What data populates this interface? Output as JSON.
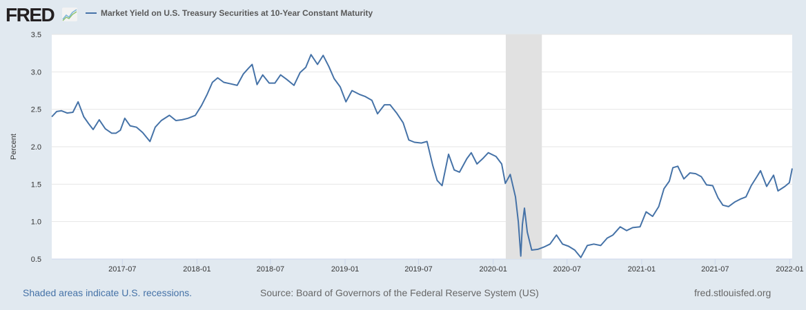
{
  "header": {
    "logo": "FRED",
    "legend_label": "Market Yield on U.S. Treasury Securities at 10-Year Constant Maturity"
  },
  "footer": {
    "note": "Shaded areas indicate U.S. recessions.",
    "source": "Source: Board of Governors of the Federal Reserve System (US)",
    "site": "fred.stlouisfed.org"
  },
  "colors": {
    "series": "#4572a7",
    "recession": "#e1e1e1",
    "background": "#e1e9f0"
  },
  "chart_data": {
    "type": "line",
    "title": "Market Yield on U.S. Treasury Securities at 10-Year Constant Maturity",
    "ylabel": "Percent",
    "xlabel": "",
    "ylim": [
      0.5,
      3.5
    ],
    "xlim": [
      "2017-01-08",
      "2022-01-07"
    ],
    "yticks": [
      "0.5",
      "1.0",
      "1.5",
      "2.0",
      "2.5",
      "3.0",
      "3.5"
    ],
    "xticks": [
      "2017-07",
      "2018-01",
      "2018-07",
      "2019-01",
      "2019-07",
      "2020-01",
      "2020-07",
      "2021-01",
      "2021-07",
      "2022-01"
    ],
    "grid": "horizontal",
    "legend": "top-left",
    "recessions": [
      [
        "2020-02-01",
        "2020-04-30"
      ]
    ],
    "series": [
      {
        "name": "Market Yield on U.S. Treasury Securities at 10-Year Constant Maturity",
        "x": [
          "2017-01-08",
          "2017-01-20",
          "2017-02-01",
          "2017-02-15",
          "2017-03-01",
          "2017-03-14",
          "2017-03-28",
          "2017-04-10",
          "2017-04-20",
          "2017-05-05",
          "2017-05-20",
          "2017-06-05",
          "2017-06-15",
          "2017-06-26",
          "2017-07-07",
          "2017-07-20",
          "2017-08-05",
          "2017-08-20",
          "2017-09-07",
          "2017-09-20",
          "2017-10-05",
          "2017-10-25",
          "2017-11-10",
          "2017-11-25",
          "2017-12-10",
          "2017-12-28",
          "2018-01-12",
          "2018-01-26",
          "2018-02-08",
          "2018-02-21",
          "2018-03-08",
          "2018-03-25",
          "2018-04-10",
          "2018-04-25",
          "2018-05-08",
          "2018-05-17",
          "2018-05-29",
          "2018-06-12",
          "2018-06-28",
          "2018-07-12",
          "2018-07-26",
          "2018-08-10",
          "2018-08-28",
          "2018-09-12",
          "2018-09-26",
          "2018-10-09",
          "2018-10-25",
          "2018-11-08",
          "2018-11-22",
          "2018-12-05",
          "2018-12-20",
          "2019-01-03",
          "2019-01-18",
          "2019-02-05",
          "2019-02-20",
          "2019-03-08",
          "2019-03-22",
          "2019-04-08",
          "2019-04-22",
          "2019-05-08",
          "2019-05-24",
          "2019-06-07",
          "2019-06-21",
          "2019-07-08",
          "2019-07-22",
          "2019-08-05",
          "2019-08-16",
          "2019-08-28",
          "2019-09-13",
          "2019-09-27",
          "2019-10-10",
          "2019-10-28",
          "2019-11-08",
          "2019-11-22",
          "2019-12-06",
          "2019-12-20",
          "2020-01-08",
          "2020-01-22",
          "2020-01-31",
          "2020-02-12",
          "2020-02-25",
          "2020-03-03",
          "2020-03-09",
          "2020-03-13",
          "2020-03-18",
          "2020-03-25",
          "2020-04-05",
          "2020-04-20",
          "2020-05-05",
          "2020-05-20",
          "2020-06-05",
          "2020-06-20",
          "2020-07-05",
          "2020-07-20",
          "2020-08-04",
          "2020-08-20",
          "2020-09-05",
          "2020-09-22",
          "2020-10-08",
          "2020-10-22",
          "2020-11-09",
          "2020-11-25",
          "2020-12-10",
          "2020-12-28",
          "2021-01-12",
          "2021-01-28",
          "2021-02-12",
          "2021-02-25",
          "2021-03-10",
          "2021-03-19",
          "2021-03-31",
          "2021-04-15",
          "2021-04-30",
          "2021-05-14",
          "2021-05-28",
          "2021-06-10",
          "2021-06-25",
          "2021-07-08",
          "2021-07-20",
          "2021-08-03",
          "2021-08-18",
          "2021-09-01",
          "2021-09-15",
          "2021-09-28",
          "2021-10-12",
          "2021-10-21",
          "2021-11-05",
          "2021-11-22",
          "2021-12-03",
          "2021-12-20",
          "2021-12-31",
          "2022-01-07"
        ],
        "values": [
          2.4,
          2.47,
          2.48,
          2.45,
          2.46,
          2.6,
          2.4,
          2.3,
          2.23,
          2.36,
          2.24,
          2.18,
          2.18,
          2.22,
          2.38,
          2.28,
          2.26,
          2.19,
          2.07,
          2.26,
          2.35,
          2.42,
          2.35,
          2.36,
          2.38,
          2.42,
          2.55,
          2.7,
          2.86,
          2.92,
          2.86,
          2.84,
          2.82,
          2.97,
          3.05,
          3.1,
          2.83,
          2.96,
          2.85,
          2.85,
          2.96,
          2.9,
          2.82,
          2.99,
          3.06,
          3.23,
          3.1,
          3.22,
          3.07,
          2.91,
          2.8,
          2.6,
          2.75,
          2.7,
          2.67,
          2.62,
          2.44,
          2.56,
          2.56,
          2.45,
          2.32,
          2.09,
          2.06,
          2.05,
          2.07,
          1.75,
          1.55,
          1.48,
          1.9,
          1.69,
          1.66,
          1.84,
          1.92,
          1.77,
          1.84,
          1.92,
          1.87,
          1.77,
          1.51,
          1.63,
          1.33,
          1.0,
          0.54,
          0.96,
          1.18,
          0.86,
          0.62,
          0.63,
          0.66,
          0.7,
          0.82,
          0.7,
          0.67,
          0.62,
          0.52,
          0.68,
          0.7,
          0.68,
          0.78,
          0.82,
          0.93,
          0.88,
          0.92,
          0.93,
          1.13,
          1.07,
          1.2,
          1.44,
          1.54,
          1.72,
          1.74,
          1.57,
          1.65,
          1.64,
          1.6,
          1.49,
          1.48,
          1.32,
          1.22,
          1.2,
          1.26,
          1.3,
          1.33,
          1.48,
          1.6,
          1.68,
          1.47,
          1.62,
          1.41,
          1.47,
          1.52,
          1.71
        ]
      }
    ]
  }
}
